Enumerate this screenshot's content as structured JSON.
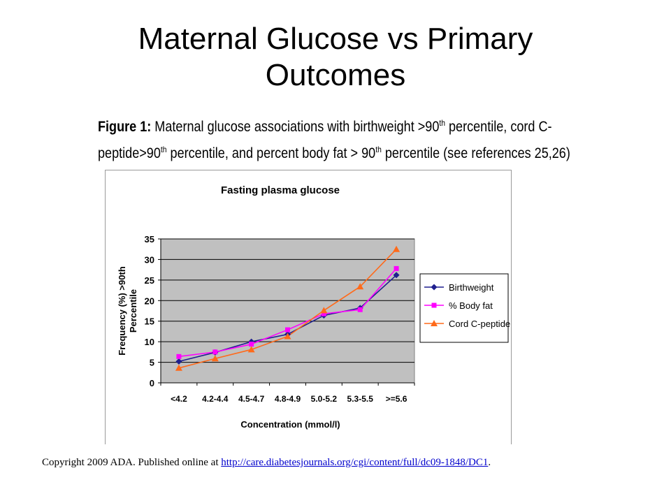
{
  "slide": {
    "title_line1": "Maternal Glucose vs Primary",
    "title_line2": "Outcomes"
  },
  "figure": {
    "label": "Figure 1:",
    "caption_part1": " Maternal glucose associations with birthweight >90",
    "caption_sup1": "th",
    "caption_part2": " percentile, cord C-",
    "caption_part3": "peptide>90",
    "caption_sup2": "th",
    "caption_part4": " percentile, and percent body fat > 90",
    "caption_sup3": "th",
    "caption_part5": " percentile (see references 25,26)"
  },
  "footer": {
    "copyright_text": "Copyright 2009 ADA. Published online at ",
    "link_text": "http://care.diabetesjournals.org/cgi/content/full/dc09-1848/DC1",
    "suffix": "."
  },
  "chart_data": {
    "type": "line",
    "title": "Fasting plasma glucose",
    "xlabel": "Concentration (mmol/l)",
    "ylabel": "Frequency (%) >90th Percentile",
    "categories": [
      "<4.2",
      "4.2-4.4",
      "4.5-4.7",
      "4.8-4.9",
      "5.0-5.2",
      "5.3-5.5",
      ">=5.6"
    ],
    "ylim": [
      0,
      35
    ],
    "yticks": [
      0,
      5,
      10,
      15,
      20,
      25,
      30,
      35
    ],
    "grid": true,
    "legend_position": "right",
    "series": [
      {
        "name": "Birthweight",
        "color": "#1f1f8f",
        "marker": "diamond",
        "values": [
          5.2,
          7.4,
          10.0,
          11.8,
          16.4,
          18.2,
          26.2
        ]
      },
      {
        "name": "% Body fat",
        "color": "#ff00ff",
        "marker": "square",
        "values": [
          6.4,
          7.5,
          9.4,
          12.9,
          16.8,
          17.8,
          27.8
        ]
      },
      {
        "name": "Cord C-peptide",
        "color": "#ff6a1a",
        "marker": "triangle",
        "values": [
          3.6,
          5.9,
          8.1,
          11.3,
          17.6,
          23.4,
          32.5
        ]
      }
    ]
  }
}
